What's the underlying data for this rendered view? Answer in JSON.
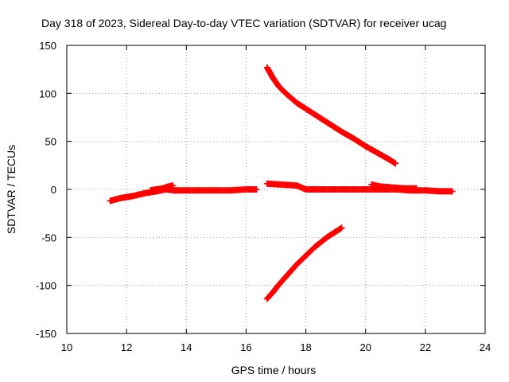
{
  "chart_data": {
    "type": "scatter",
    "title": "Day 318 of 2023, Sidereal Day-to-day VTEC variation (SDTVAR) for receiver ucag",
    "xlabel": "GPS time / hours",
    "ylabel": "SDTVAR / TECUs",
    "xlim": [
      10,
      24
    ],
    "ylim": [
      -150,
      150
    ],
    "xticks": [
      10,
      12,
      14,
      16,
      18,
      20,
      22,
      24
    ],
    "yticks": [
      -150,
      -100,
      -50,
      0,
      50,
      100,
      150
    ],
    "grid": true,
    "legend": "none",
    "marker": "plus",
    "color": "#ff0000",
    "series": [
      {
        "x": [
          11.45,
          11.8,
          12.2,
          12.6,
          13.0,
          13.3,
          13.6,
          14.0,
          14.5,
          15.0,
          15.5,
          16.0,
          16.35
        ],
        "y": [
          -12,
          -9,
          -7,
          -4,
          -2,
          0,
          -1,
          -1,
          -1,
          -1,
          -1,
          0,
          0
        ]
      },
      {
        "x": [
          12.8,
          13.0,
          13.2,
          13.4,
          13.55
        ],
        "y": [
          -1,
          0,
          1,
          3,
          4
        ]
      },
      {
        "x": [
          16.7,
          17.2,
          17.7,
          18.0,
          18.5,
          19.0,
          19.5,
          20.0,
          20.5,
          21.0,
          21.5,
          22.0,
          22.5,
          22.9
        ],
        "y": [
          6,
          5,
          4,
          0,
          0,
          0,
          0,
          0,
          0,
          0,
          -1,
          -1,
          -2,
          -2
        ]
      },
      {
        "x": [
          20.2,
          20.5,
          20.9,
          21.3,
          21.7
        ],
        "y": [
          5,
          3,
          2,
          1,
          1
        ]
      },
      {
        "x": [
          16.7,
          16.9,
          17.1,
          17.4,
          17.7,
          18.0,
          18.4,
          18.8,
          19.2,
          19.6,
          20.0,
          20.4,
          20.8,
          21.0
        ],
        "y": [
          127,
          116,
          107,
          98,
          90,
          84,
          76,
          68,
          60,
          53,
          45,
          38,
          31,
          27
        ]
      },
      {
        "x": [
          16.7,
          16.9,
          17.1,
          17.3,
          17.5,
          17.7,
          17.9,
          18.1,
          18.3,
          18.5,
          18.7,
          18.9,
          19.1,
          19.2
        ],
        "y": [
          -114,
          -107,
          -99,
          -92,
          -85,
          -78,
          -72,
          -66,
          -60,
          -55,
          -50,
          -46,
          -42,
          -40
        ]
      }
    ]
  }
}
